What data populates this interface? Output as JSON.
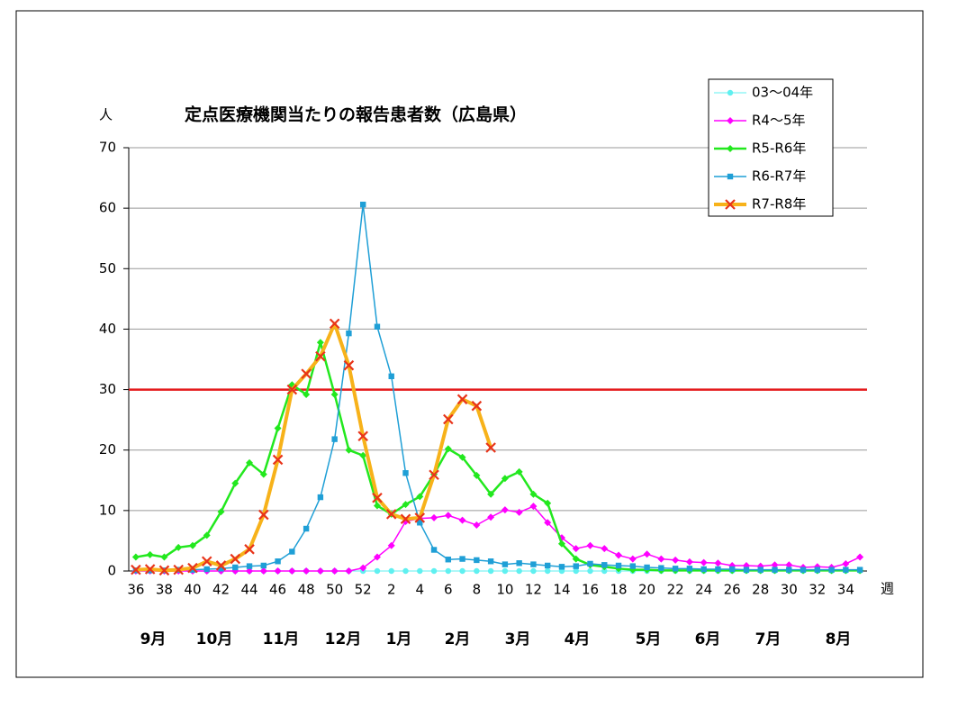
{
  "chart_data": {
    "type": "line",
    "title": "定点医療機関当たりの報告患者数（広島県）",
    "y_label": "人",
    "x_label": "週",
    "categories": [
      "36",
      null,
      "38",
      null,
      "40",
      null,
      "42",
      null,
      "44",
      null,
      "46",
      null,
      "48",
      null,
      "50",
      null,
      "52",
      null,
      "2",
      null,
      "4",
      null,
      "6",
      null,
      "8",
      null,
      "10",
      null,
      "12",
      null,
      "14",
      null,
      "16",
      null,
      "18",
      null,
      "20",
      null,
      "22",
      null,
      "24",
      null,
      "26",
      null,
      "28",
      null,
      "30",
      null,
      "32",
      null,
      "34",
      null
    ],
    "month_labels": [
      "9月",
      "10月",
      "11月",
      "12月",
      "1月",
      "2月",
      "3月",
      "4月",
      "5月",
      "6月",
      "7月",
      "8月"
    ],
    "ylim": [
      0,
      70
    ],
    "yticks": [
      0,
      10,
      20,
      30,
      40,
      50,
      60,
      70
    ],
    "grid": true,
    "threshold": 30,
    "threshold_color": "#e41a1c",
    "legend": "upper right",
    "series": [
      {
        "name": "03～04年",
        "color": "#5ff0f0",
        "marker": "circle",
        "width": 1,
        "values": [
          0,
          0,
          0,
          0,
          0,
          0,
          0,
          0,
          0,
          0,
          0,
          0,
          0,
          0,
          0,
          0,
          0,
          0,
          0,
          0,
          0,
          0,
          0,
          0,
          0,
          0,
          0,
          0,
          0,
          0,
          0,
          0,
          0,
          0,
          0,
          0,
          0,
          0,
          0,
          0,
          0,
          0,
          0,
          0,
          0,
          0,
          0,
          0,
          0,
          0,
          0,
          0
        ]
      },
      {
        "name": "R4～5年",
        "color": "#ff00ff",
        "marker": "diamond",
        "width": 1.5,
        "values": [
          0,
          0,
          0,
          0,
          0,
          0,
          0,
          0,
          0,
          0,
          0,
          0,
          0,
          0,
          0,
          0,
          0.5,
          2.3,
          4.2,
          8.2,
          8.7,
          8.8,
          9.2,
          8.4,
          7.6,
          8.9,
          10.1,
          9.7,
          10.7,
          8,
          5.5,
          3.7,
          4.2,
          3.7,
          2.6,
          2,
          2.8,
          2,
          1.8,
          1.5,
          1.4,
          1.3,
          0.9,
          0.9,
          0.8,
          1,
          1,
          0.6,
          0.7,
          0.6,
          1.2,
          2.3
        ]
      },
      {
        "name": "R5-R6年",
        "color": "#22e81e",
        "marker": "diamond",
        "width": 2.5,
        "values": [
          2.3,
          2.7,
          2.3,
          3.9,
          4.2,
          5.9,
          9.8,
          14.5,
          17.9,
          16,
          23.6,
          30.8,
          29.2,
          37.8,
          29.2,
          20,
          19.1,
          10.8,
          9.4,
          11,
          12.3,
          16,
          20.2,
          18.8,
          15.8,
          12.7,
          15.3,
          16.4,
          12.7,
          11.2,
          4.5,
          2,
          1,
          0.7,
          0.4,
          0.2,
          0.2,
          0.1,
          0.1,
          0.1,
          0.1,
          0.1,
          0.1,
          0.1,
          0.1,
          0.1,
          0.1,
          0.1,
          0.1,
          0.1,
          0.1,
          0.1
        ]
      },
      {
        "name": "R6-R7年",
        "color": "#1f9fd6",
        "marker": "square",
        "width": 1.5,
        "values": [
          0.1,
          0.1,
          0.1,
          0.2,
          0.2,
          0.3,
          0.4,
          0.6,
          0.8,
          0.9,
          1.6,
          3.2,
          7,
          12.2,
          21.8,
          39.3,
          60.6,
          40.4,
          32.2,
          16.2,
          8,
          3.5,
          1.9,
          2,
          1.8,
          1.6,
          1.1,
          1.3,
          1.1,
          0.9,
          0.7,
          0.8,
          1.2,
          1,
          0.9,
          0.8,
          0.6,
          0.5,
          0.4,
          0.4,
          0.3,
          0.3,
          0.3,
          0.2,
          0.2,
          0.2,
          0.2,
          0.2,
          0.2,
          0.2,
          0.2,
          0.2
        ]
      },
      {
        "name": "R7-R8年",
        "color": "#f7b21a",
        "marker": "x",
        "marker_color": "#e8341a",
        "width": 4,
        "values": [
          0.2,
          0.3,
          0.1,
          0.2,
          0.5,
          1.6,
          0.9,
          2,
          3.6,
          9.3,
          18.4,
          30,
          32.6,
          35.5,
          40.9,
          34,
          22.3,
          12.1,
          9.4,
          8.6,
          8.8,
          15.9,
          25.1,
          28.4,
          27.3,
          20.4,
          null,
          null,
          null,
          null,
          null,
          null,
          null,
          null,
          null,
          null,
          null,
          null,
          null,
          null,
          null,
          null,
          null,
          null,
          null,
          null,
          null,
          null,
          null,
          null,
          null,
          null
        ]
      }
    ]
  }
}
